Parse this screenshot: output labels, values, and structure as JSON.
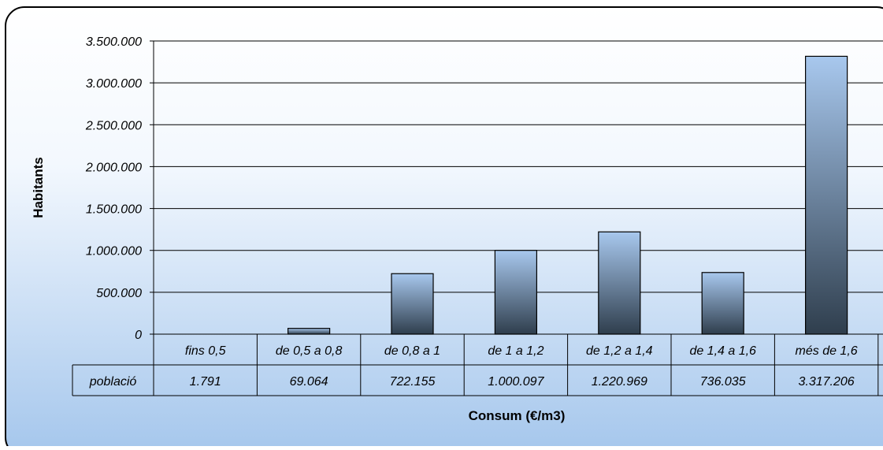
{
  "chart_data": {
    "type": "bar",
    "categories": [
      "fins 0,5",
      "de 0,5 a 0,8",
      "de 0,8 a 1",
      "de 1 a 1,2",
      "de 1,2 a 1,4",
      "de 1,4 a 1,6",
      "més de 1,6"
    ],
    "series": [
      {
        "name": "població",
        "values": [
          1791,
          69064,
          722155,
          1000097,
          1220969,
          736035,
          3317206
        ]
      }
    ],
    "table_values": [
      "1.791",
      "69.064",
      "722.155",
      "1.000.097",
      "1.220.969",
      "736.035",
      "3.317.206"
    ],
    "xlabel": "Consum (€/m3)",
    "ylabel": "Habitants",
    "ylim": [
      0,
      3500000
    ],
    "y_ticks": [
      0,
      500000,
      1000000,
      1500000,
      2000000,
      2500000,
      3000000,
      3500000
    ],
    "y_tick_labels": [
      "0",
      "500.000",
      "1.000.000",
      "1.500.000",
      "2.000.000",
      "2.500.000",
      "3.000.000",
      "3.500.000"
    ],
    "grid": true,
    "legend": "data table below plot",
    "colors": {
      "bar_top": "#a8c8ee",
      "bar_bottom": "#2f3e4d",
      "background_top": "#ffffff",
      "background_bottom": "#a4c6ec",
      "frame": "#000000"
    }
  }
}
